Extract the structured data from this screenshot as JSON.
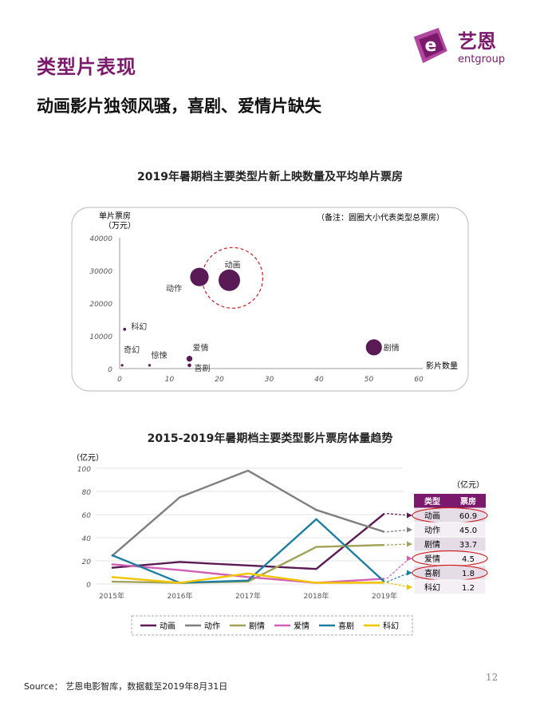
{
  "logo": {
    "brand_cn": "艺恩",
    "brand_en": "entgroup"
  },
  "section_title": "类型片表现",
  "headline": "动画影片独领风骚，喜剧、爱情片缺失",
  "colors": {
    "accent": "#7b1a6c",
    "bubble": "#5a1a55",
    "highlight": "#cc1f1f",
    "table_header": "#7b1a6c"
  },
  "chart_data": [
    {
      "type": "scatter",
      "title": "2019年暑期档主要类型片新上映数量及平均单片票房",
      "ylabel": "单片票房（万元）",
      "xlabel": "影片数量",
      "note": "（备注：圆圈大小代表类型总票房）",
      "xlim": [
        0,
        60
      ],
      "ylim": [
        0,
        40000
      ],
      "xticks": [
        "0",
        "10",
        "20",
        "30",
        "40",
        "50",
        "60"
      ],
      "yticks": [
        "0",
        "10000",
        "20000",
        "30000",
        "40000"
      ],
      "points": [
        {
          "name": "动画",
          "x": 22,
          "y": 27000,
          "size": 60.9,
          "highlight": true
        },
        {
          "name": "动作",
          "x": 16,
          "y": 28000,
          "size": 45.0
        },
        {
          "name": "剧情",
          "x": 51,
          "y": 6500,
          "size": 33.7
        },
        {
          "name": "科幻",
          "x": 1,
          "y": 12000,
          "size": 1.2
        },
        {
          "name": "爱情",
          "x": 14,
          "y": 3000,
          "size": 4.5
        },
        {
          "name": "喜剧",
          "x": 14,
          "y": 1000,
          "size": 1.8
        },
        {
          "name": "惊悚",
          "x": 6,
          "y": 1000,
          "size": 0.5
        },
        {
          "name": "奇幻",
          "x": 0.5,
          "y": 1000,
          "size": 0.3
        }
      ]
    },
    {
      "type": "line",
      "title": "2015-2019年暑期档主要类型影片票房体量趋势",
      "ylabel": "（亿元）",
      "ylim": [
        0,
        100
      ],
      "yticks": [
        "0",
        "20",
        "40",
        "60",
        "80",
        "100"
      ],
      "categories": [
        "2015年",
        "2016年",
        "2017年",
        "2018年",
        "2019年"
      ],
      "series": [
        {
          "name": "动画",
          "color": "#5a1a55",
          "values": [
            14,
            19,
            16,
            13,
            60.9
          ]
        },
        {
          "name": "动作",
          "color": "#7f7f7f",
          "values": [
            24,
            75,
            98,
            64,
            45.0
          ]
        },
        {
          "name": "剧情",
          "color": "#a3a35a",
          "values": [
            2,
            1,
            2,
            32,
            33.7
          ]
        },
        {
          "name": "爱情",
          "color": "#d35fb7",
          "values": [
            17,
            12,
            6,
            1,
            4.5
          ]
        },
        {
          "name": "喜剧",
          "color": "#1f7fa0",
          "values": [
            25,
            1,
            3,
            56,
            1.8
          ]
        },
        {
          "name": "科幻",
          "color": "#f2c500",
          "values": [
            6,
            1,
            9,
            1,
            1.2
          ]
        }
      ]
    }
  ],
  "table": {
    "unit": "（亿元）",
    "headers": [
      "类型",
      "票房"
    ],
    "rows": [
      {
        "type": "动画",
        "value": "60.9",
        "circled": true
      },
      {
        "type": "动作",
        "value": "45.0"
      },
      {
        "type": "剧情",
        "value": "33.7"
      },
      {
        "type": "爱情",
        "value": "4.5",
        "circled": true
      },
      {
        "type": "喜剧",
        "value": "1.8",
        "circled": true
      },
      {
        "type": "科幻",
        "value": "1.2"
      }
    ]
  },
  "source": "Source： 艺恩电影智库，数据截至2019年8月31日",
  "page_number": "12"
}
